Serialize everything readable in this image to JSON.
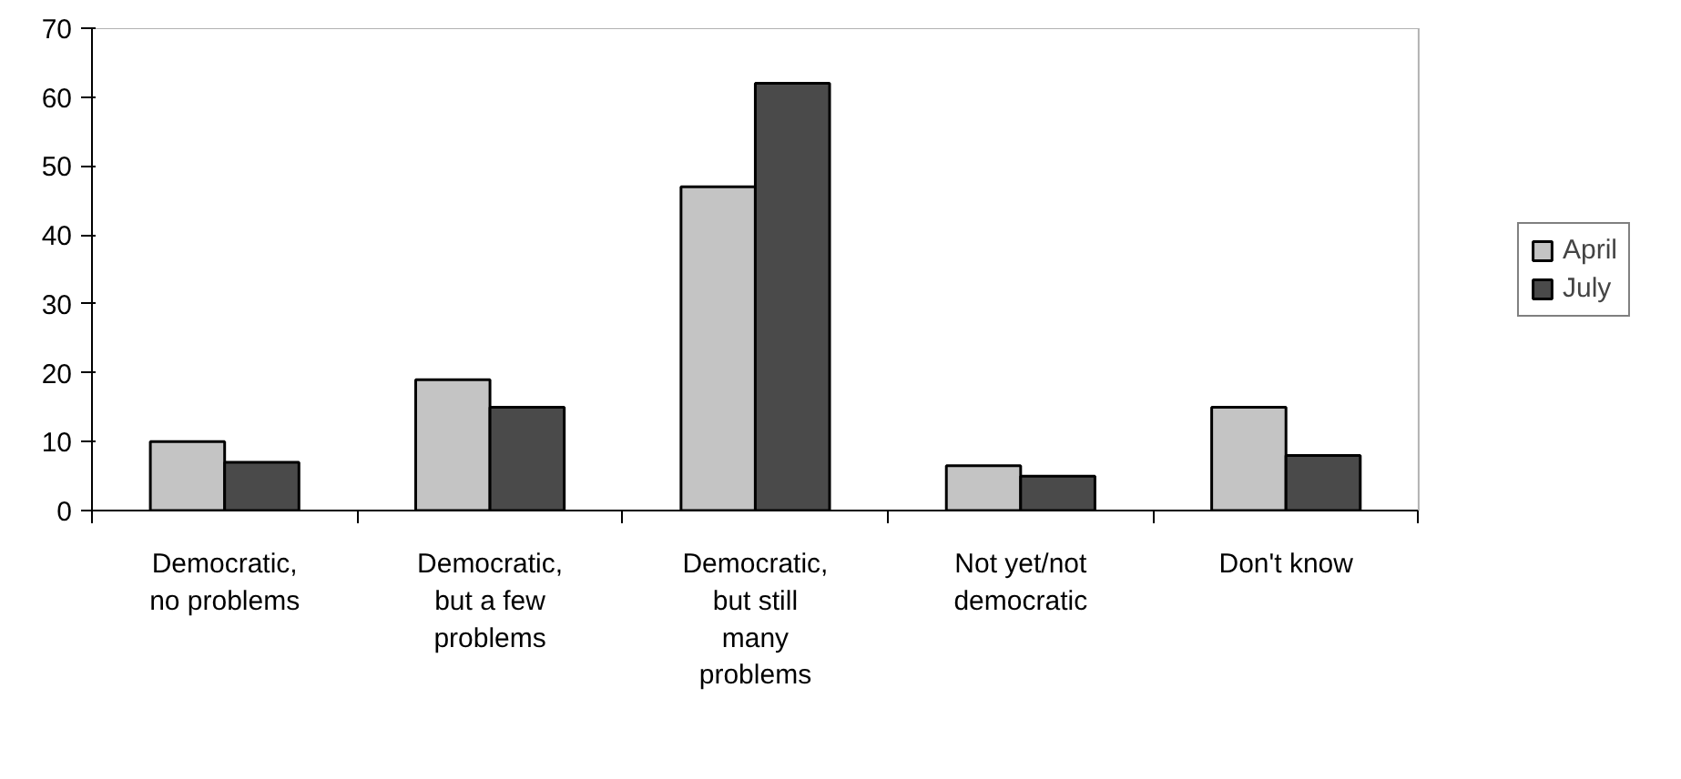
{
  "chart_data": {
    "type": "bar",
    "categories": [
      "Democratic, no problems",
      "Democratic, but a few problems",
      "Democratic, but still many problems",
      "Not yet/not democratic",
      "Don't know"
    ],
    "series": [
      {
        "name": "April",
        "color": "#c4c4c4",
        "values": [
          10,
          19,
          47,
          6.5,
          15
        ]
      },
      {
        "name": "July",
        "color": "#4a4a4a",
        "values": [
          7,
          15,
          62,
          5,
          8
        ]
      }
    ],
    "ylim": [
      0,
      70
    ],
    "yticks": [
      0,
      10,
      20,
      30,
      40,
      50,
      60,
      70
    ],
    "grid": false,
    "legend": "right"
  }
}
